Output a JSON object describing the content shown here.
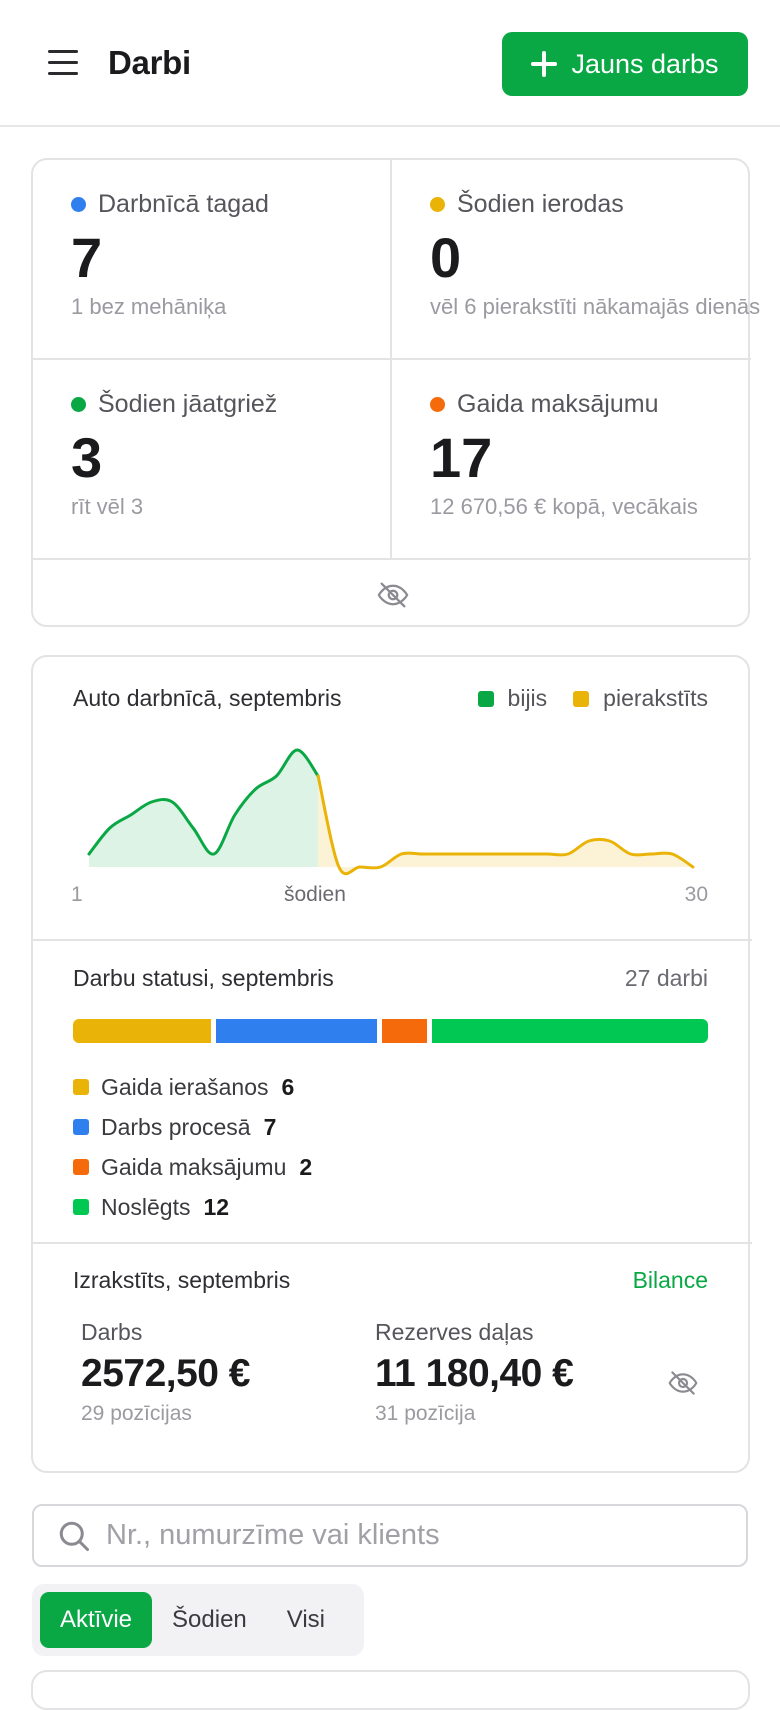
{
  "header": {
    "title": "Darbi",
    "new_button_label": "Jauns darbs"
  },
  "stats": [
    {
      "label": "Darbnīcā tagad",
      "value": "7",
      "sub": "1 bez mehāniķa",
      "color": "#2f7fef"
    },
    {
      "label": "Šodien ierodas",
      "value": "0",
      "sub": "vēl 6 pierakstīti nākamajās dienās",
      "color": "#eab308"
    },
    {
      "label": "Šodien jāatgriež",
      "value": "3",
      "sub": "rīt vēl 3",
      "color": "#0aa845"
    },
    {
      "label": "Gaida maksājumu",
      "value": "17",
      "sub": "12 670,56 € kopā, vecākais",
      "color": "#f56a0a"
    }
  ],
  "occupancy": {
    "title": "Auto darbnīcā, septembris",
    "legend": [
      {
        "label": "bijis",
        "color": "#0aa845"
      },
      {
        "label": "pierakstīts",
        "color": "#eab308"
      }
    ],
    "axis_start": "1",
    "axis_today": "šodien",
    "axis_end": "30"
  },
  "chart_data": {
    "type": "area",
    "title": "Auto darbnīcā, septembris",
    "x": [
      1,
      2,
      3,
      4,
      5,
      6,
      7,
      8,
      9,
      10,
      11,
      12,
      13,
      14,
      15,
      16,
      17,
      18,
      19,
      20,
      21,
      22,
      23,
      24,
      25,
      26,
      27,
      28,
      29,
      30
    ],
    "today_index": 11,
    "series": [
      {
        "name": "bijis",
        "values": [
          1,
          3,
          4,
          5,
          5,
          3,
          1,
          4,
          6,
          7,
          9,
          7,
          null,
          null,
          null,
          null,
          null,
          null,
          null,
          null,
          null,
          null,
          null,
          null,
          null,
          null,
          null,
          null,
          null,
          null
        ]
      },
      {
        "name": "pierakstīts",
        "values": [
          null,
          null,
          null,
          null,
          null,
          null,
          null,
          null,
          null,
          null,
          null,
          7,
          0,
          0,
          0,
          1,
          1,
          1,
          1,
          1,
          1,
          1,
          1,
          1,
          2,
          2,
          1,
          1,
          1,
          0
        ]
      }
    ],
    "ylim": [
      0,
      10
    ]
  },
  "statuses": {
    "title": "Darbu statusi, septembris",
    "total_label": "27 darbi",
    "items": [
      {
        "label": "Gaida ierašanos",
        "count": "6",
        "value": 6,
        "color": "#eab308"
      },
      {
        "label": "Darbs procesā",
        "count": "7",
        "value": 7,
        "color": "#2f7fef"
      },
      {
        "label": "Gaida maksājumu",
        "count": "2",
        "value": 2,
        "color": "#f56a0a"
      },
      {
        "label": "Noslēgts",
        "count": "12",
        "value": 12,
        "color": "#00c853"
      }
    ]
  },
  "invoiced": {
    "title": "Izrakstīts, septembris",
    "balance_link": "Bilance",
    "work": {
      "label": "Darbs",
      "value": "2572,50 €",
      "sub": "29 pozīcijas"
    },
    "parts": {
      "label": "Rezerves daļas",
      "value": "11 180,40 €",
      "sub": "31 pozīcija"
    }
  },
  "search": {
    "placeholder": "Nr., numurzīme vai klients",
    "value": ""
  },
  "tabs": [
    {
      "label": "Aktīvie",
      "active": true
    },
    {
      "label": "Šodien",
      "active": false
    },
    {
      "label": "Visi",
      "active": false
    }
  ]
}
